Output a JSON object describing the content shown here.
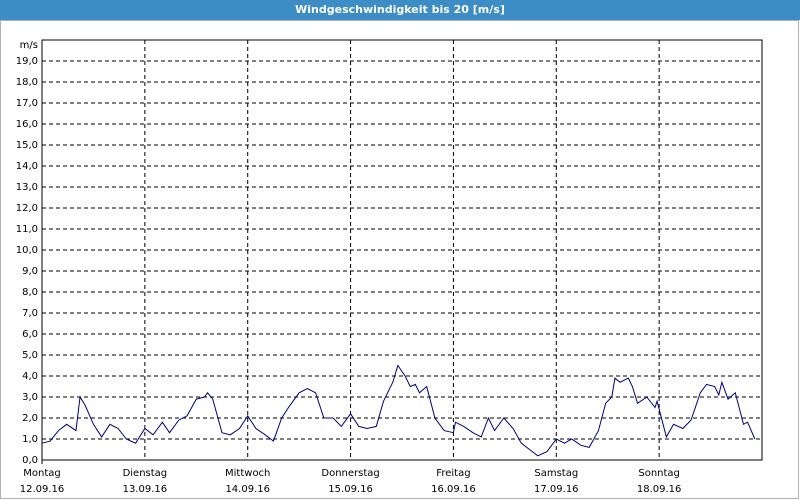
{
  "chart_data": {
    "type": "line",
    "title": "Windgeschwindigkeit bis 20 [m/s]",
    "y_label": "m/s",
    "xlim": [
      0,
      7
    ],
    "ylim": [
      0,
      20
    ],
    "xticks": [
      {
        "value": 0,
        "label": "Montag"
      },
      {
        "value": 1,
        "label": "Dienstag"
      },
      {
        "value": 2,
        "label": "Mittwoch"
      },
      {
        "value": 3,
        "label": "Donnerstag"
      },
      {
        "value": 4,
        "label": "Freitag"
      },
      {
        "value": 5,
        "label": "Samstag"
      },
      {
        "value": 6,
        "label": "Sonntag"
      }
    ],
    "xtick_dates": [
      "12.09.16",
      "13.09.16",
      "14.09.16",
      "15.09.16",
      "16.09.16",
      "17.09.16",
      "18.09.16"
    ],
    "yticks": [
      {
        "value": 0,
        "label": "0,0"
      },
      {
        "value": 1,
        "label": "1,0"
      },
      {
        "value": 2,
        "label": "2,0"
      },
      {
        "value": 3,
        "label": "3,0"
      },
      {
        "value": 4,
        "label": "4,0"
      },
      {
        "value": 5,
        "label": "5,0"
      },
      {
        "value": 6,
        "label": "6,0"
      },
      {
        "value": 7,
        "label": "7,0"
      },
      {
        "value": 8,
        "label": "8,0"
      },
      {
        "value": 9,
        "label": "9,0"
      },
      {
        "value": 10,
        "label": "10,0"
      },
      {
        "value": 11,
        "label": "11,0"
      },
      {
        "value": 12,
        "label": "12,0"
      },
      {
        "value": 13,
        "label": "13,0"
      },
      {
        "value": 14,
        "label": "14,0"
      },
      {
        "value": 15,
        "label": "15,0"
      },
      {
        "value": 16,
        "label": "16,0"
      },
      {
        "value": 17,
        "label": "17,0"
      },
      {
        "value": 18,
        "label": "18,0"
      },
      {
        "value": 19,
        "label": "19,0"
      }
    ],
    "grid": true,
    "x": [
      0,
      0.08,
      0.16,
      0.24,
      0.33,
      0.37,
      0.42,
      0.5,
      0.58,
      0.66,
      0.74,
      0.82,
      0.91,
      1.0,
      1.08,
      1.17,
      1.24,
      1.33,
      1.41,
      1.5,
      1.58,
      1.61,
      1.66,
      1.75,
      1.83,
      1.92,
      2.0,
      2.08,
      2.17,
      2.25,
      2.33,
      2.41,
      2.5,
      2.58,
      2.66,
      2.74,
      2.83,
      2.91,
      3.0,
      3.08,
      3.16,
      3.25,
      3.32,
      3.41,
      3.46,
      3.53,
      3.58,
      3.63,
      3.67,
      3.74,
      3.82,
      3.91,
      4.0,
      4.02,
      4.1,
      4.19,
      4.27,
      4.34,
      4.4,
      4.49,
      4.58,
      4.66,
      4.74,
      4.82,
      4.91,
      5.0,
      5.08,
      5.15,
      5.24,
      5.32,
      5.41,
      5.48,
      5.54,
      5.57,
      5.62,
      5.7,
      5.74,
      5.79,
      5.88,
      5.96,
      5.98,
      6.07,
      6.14,
      6.23,
      6.31,
      6.4,
      6.46,
      6.54,
      6.58,
      6.61,
      6.67,
      6.74,
      6.82,
      6.86,
      6.93
    ],
    "series": [
      {
        "color": "#00008b",
        "values": [
          0.8,
          0.9,
          1.4,
          1.7,
          1.4,
          3.0,
          2.6,
          1.7,
          1.1,
          1.7,
          1.5,
          1.0,
          0.8,
          1.5,
          1.2,
          1.8,
          1.3,
          1.9,
          2.1,
          2.9,
          3.0,
          3.2,
          2.9,
          1.3,
          1.2,
          1.5,
          2.1,
          1.5,
          1.2,
          0.9,
          2.0,
          2.6,
          3.2,
          3.4,
          3.2,
          2.0,
          2.0,
          1.6,
          2.2,
          1.6,
          1.5,
          1.6,
          2.8,
          3.7,
          4.5,
          4.0,
          3.5,
          3.6,
          3.2,
          3.5,
          2.0,
          1.4,
          1.3,
          1.8,
          1.6,
          1.3,
          1.1,
          2.0,
          1.4,
          2.0,
          1.5,
          0.8,
          0.5,
          0.2,
          0.4,
          1.0,
          0.8,
          1.0,
          0.7,
          0.6,
          1.4,
          2.7,
          3.0,
          3.9,
          3.7,
          3.9,
          3.5,
          2.7,
          3.0,
          2.5,
          2.8,
          1.1,
          1.7,
          1.5,
          1.9,
          3.2,
          3.6,
          3.5,
          3.1,
          3.7,
          2.9,
          3.2,
          1.7,
          1.8,
          1.0
        ]
      }
    ]
  }
}
